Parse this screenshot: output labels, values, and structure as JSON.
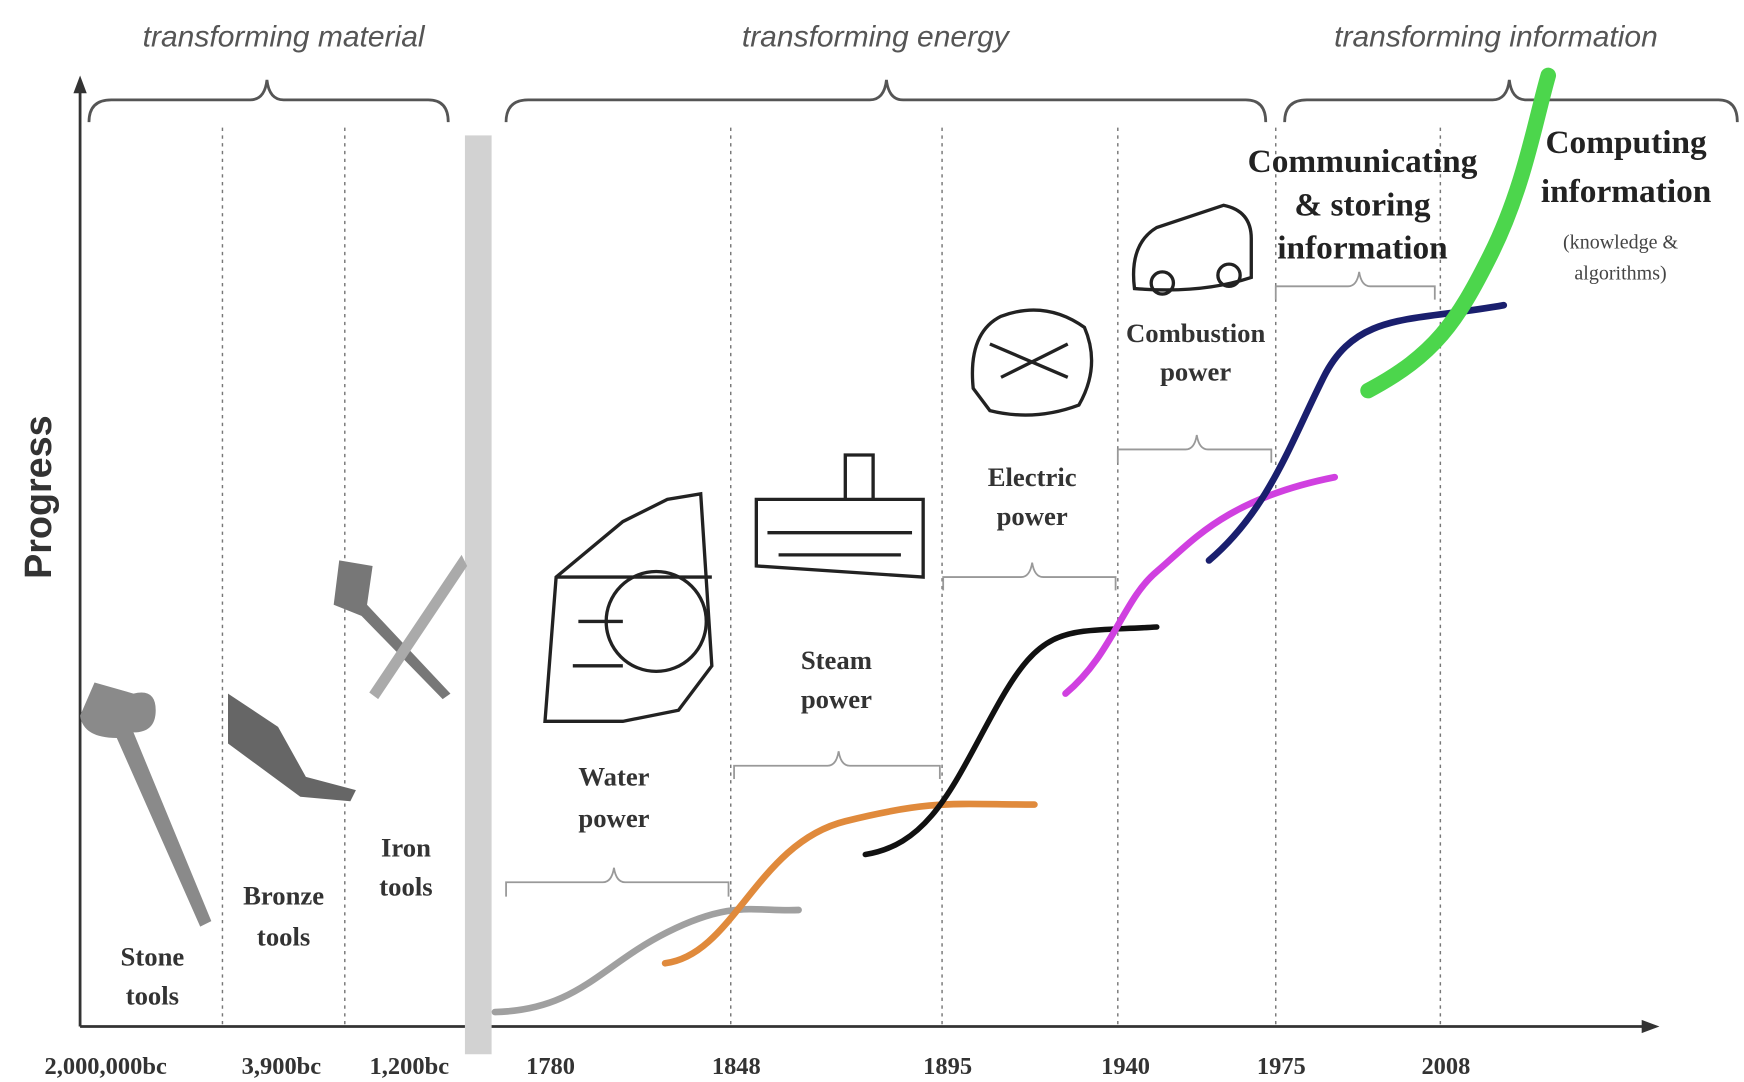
{
  "eras": [
    "transforming material",
    "transforming energy",
    "transforming information"
  ],
  "y_axis_label": "Progress",
  "x_labels": [
    "2,000,000bc",
    "3,900bc",
    "1,200bc",
    "1780",
    "1848",
    "1895",
    "1940",
    "1975",
    "2008"
  ],
  "stages": [
    {
      "lines": [
        "Stone",
        "tools"
      ]
    },
    {
      "lines": [
        "Bronze",
        "tools"
      ]
    },
    {
      "lines": [
        "Iron",
        "tools"
      ]
    },
    {
      "lines": [
        "Water",
        "power"
      ]
    },
    {
      "lines": [
        "Steam",
        "power"
      ]
    },
    {
      "lines": [
        "Electric",
        "power"
      ]
    },
    {
      "lines": [
        "Combustion",
        "power"
      ]
    },
    {
      "lines": [
        "Communicating",
        "& storing",
        "information"
      ]
    },
    {
      "lines": [
        "Computing",
        "information"
      ],
      "note": [
        "(knowledge &",
        "algorithms)"
      ]
    }
  ]
}
